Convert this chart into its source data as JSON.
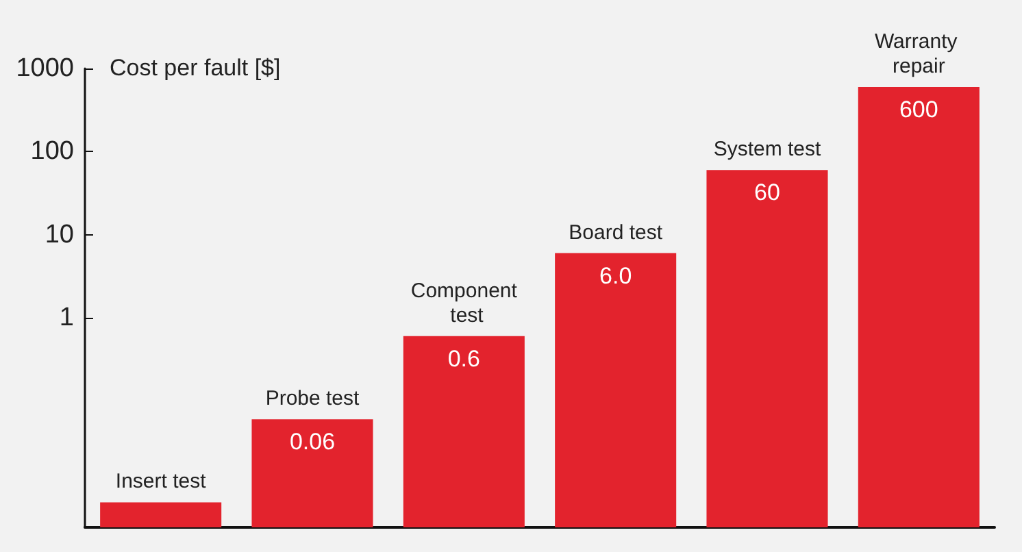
{
  "chart_data": {
    "type": "bar",
    "ylabel": "Cost per fault [$]",
    "categories": [
      "Insert test",
      "Probe test",
      "Component test",
      "Board test",
      "System test",
      "Warranty repair"
    ],
    "values": [
      0.006,
      0.06,
      0.6,
      6.0,
      60,
      600
    ],
    "value_labels": [
      null,
      "0.06",
      "0.6",
      "6.0",
      "60",
      "600"
    ],
    "color": "#e3232d",
    "log": true,
    "ylim": [
      0.003,
      1000
    ],
    "yticks": [
      1,
      10,
      100,
      1000
    ],
    "grid": false
  }
}
